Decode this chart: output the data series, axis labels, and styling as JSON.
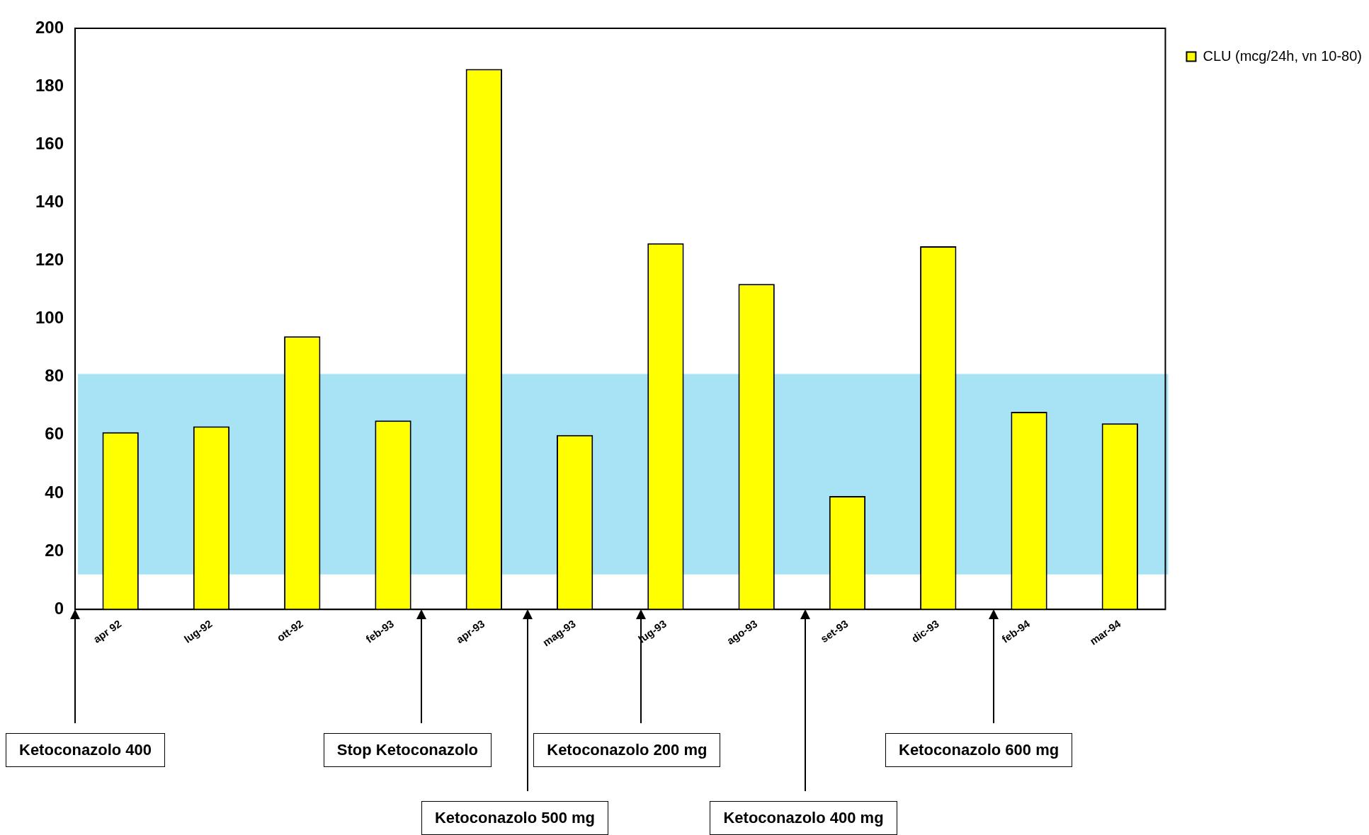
{
  "chart_data": {
    "type": "bar",
    "categories": [
      "apr 92",
      "lug-92",
      "ott-92",
      "feb-93",
      "apr-93",
      "mag-93",
      "lug-93",
      "ago-93",
      "set-93",
      "dic-93",
      "feb-94",
      "mar-94"
    ],
    "series": [
      {
        "name": "CLU (mcg/24h, vn 10-80)",
        "color": "#ffff00",
        "values": [
          61,
          63,
          94,
          65,
          186,
          60,
          126,
          112,
          39,
          125,
          68,
          64
        ]
      }
    ],
    "ylim": [
      0,
      200
    ],
    "yticks": [
      0,
      20,
      40,
      60,
      80,
      100,
      120,
      140,
      160,
      180,
      200
    ],
    "bands": [
      {
        "axis": "y",
        "from": 12,
        "to": 81,
        "color": "#a8e2f5"
      }
    ],
    "legend": "top right",
    "grid": false,
    "annotations": [
      "Ketoconazolo 400",
      "Stop Ketoconazolo",
      "Ketoconazolo 500 mg",
      "Ketoconazolo 200 mg",
      "Ketoconazolo 400 mg",
      "Ketoconazolo 600 mg"
    ]
  }
}
